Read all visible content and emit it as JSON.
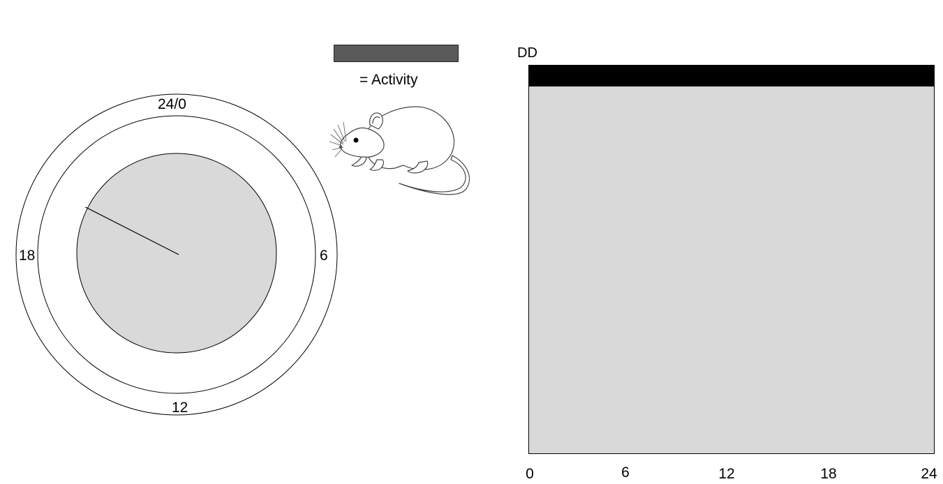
{
  "clock": {
    "labels": {
      "top": "24/0",
      "right": "6",
      "bottom": "12",
      "left": "18"
    },
    "hand_time_hours": 19.8,
    "fill_color": "#d9d9d9"
  },
  "legend": {
    "swatch_color": "#5a5a5a",
    "label": "= Activity",
    "icon": "mouse-icon"
  },
  "actogram": {
    "condition_label": "DD",
    "background_color": "#d9d9d9",
    "activity_color": "#000000",
    "x_ticks": [
      "0",
      "6",
      "12",
      "18",
      "24"
    ]
  }
}
